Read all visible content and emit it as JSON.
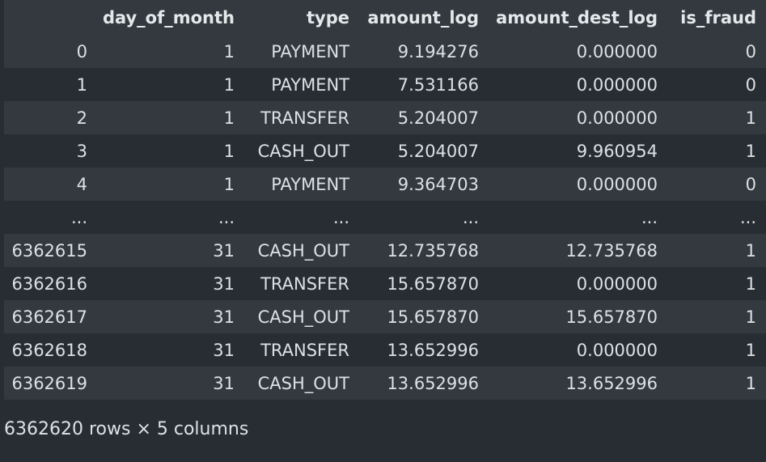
{
  "table": {
    "columns": [
      "",
      "day_of_month",
      "type",
      "amount_log",
      "amount_dest_log",
      "is_fraud"
    ],
    "rows": [
      [
        "0",
        "1",
        "PAYMENT",
        "9.194276",
        "0.000000",
        "0"
      ],
      [
        "1",
        "1",
        "PAYMENT",
        "7.531166",
        "0.000000",
        "0"
      ],
      [
        "2",
        "1",
        "TRANSFER",
        "5.204007",
        "0.000000",
        "1"
      ],
      [
        "3",
        "1",
        "CASH_OUT",
        "5.204007",
        "9.960954",
        "1"
      ],
      [
        "4",
        "1",
        "PAYMENT",
        "9.364703",
        "0.000000",
        "0"
      ],
      [
        "...",
        "...",
        "...",
        "...",
        "...",
        "..."
      ],
      [
        "6362615",
        "31",
        "CASH_OUT",
        "12.735768",
        "12.735768",
        "1"
      ],
      [
        "6362616",
        "31",
        "TRANSFER",
        "15.657870",
        "0.000000",
        "1"
      ],
      [
        "6362617",
        "31",
        "CASH_OUT",
        "15.657870",
        "15.657870",
        "1"
      ],
      [
        "6362618",
        "31",
        "TRANSFER",
        "13.652996",
        "0.000000",
        "1"
      ],
      [
        "6362619",
        "31",
        "CASH_OUT",
        "13.652996",
        "13.652996",
        "1"
      ]
    ]
  },
  "summary": "6362620 rows × 5 columns"
}
